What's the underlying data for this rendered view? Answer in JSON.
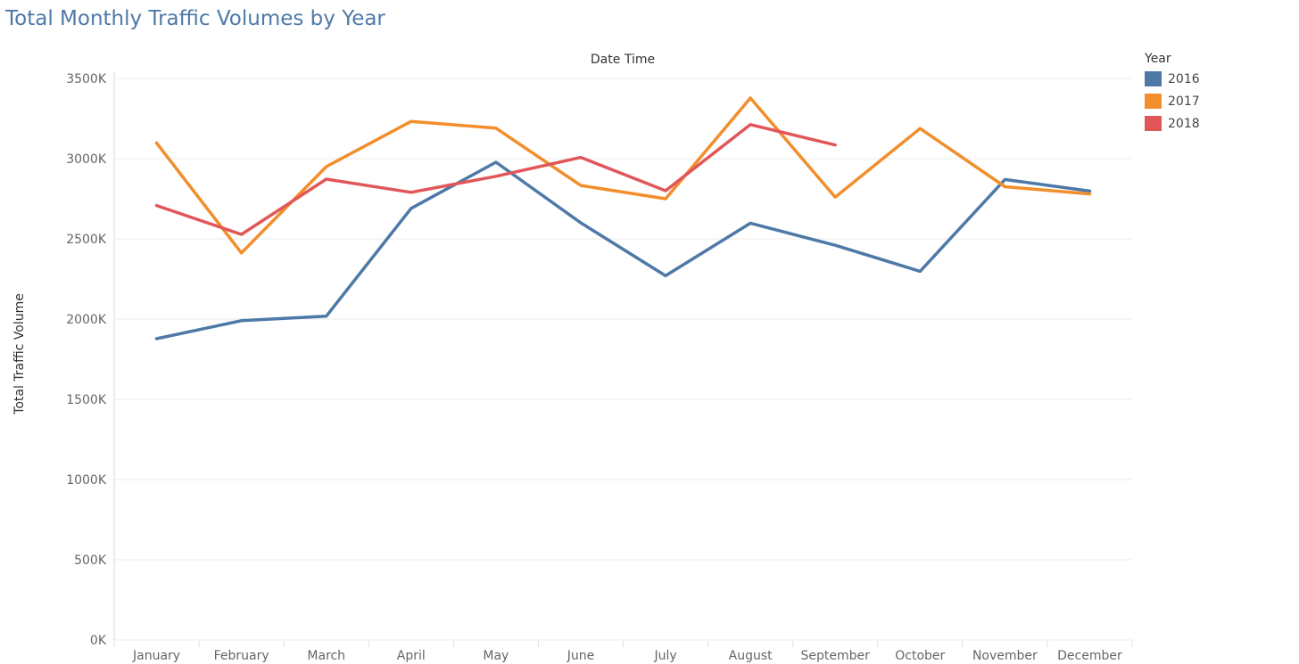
{
  "title": "Total Monthly Traffic Volumes by Year",
  "chart_data": {
    "type": "line",
    "title": "Total Monthly Traffic Volumes by Year",
    "xlabel": "Date Time",
    "ylabel": "Total Traffic Volume",
    "categories": [
      "January",
      "February",
      "March",
      "April",
      "May",
      "June",
      "July",
      "August",
      "September",
      "October",
      "November",
      "December"
    ],
    "ylim": [
      0,
      3500
    ],
    "yticks": [
      0,
      500,
      1000,
      1500,
      2000,
      2500,
      3000,
      3500
    ],
    "ytick_labels": [
      "0K",
      "500K",
      "1000K",
      "1500K",
      "2000K",
      "2500K",
      "3000K",
      "3500K"
    ],
    "grid": true,
    "legend_title": "Year",
    "legend_position": "right",
    "series": [
      {
        "name": "2016",
        "color": "#4e79a7",
        "values": [
          1878,
          1990,
          2018,
          2690,
          2978,
          2600,
          2270,
          2598,
          2460,
          2298,
          2870,
          2798
        ]
      },
      {
        "name": "2017",
        "color": "#f28e2b",
        "values": [
          3098,
          2412,
          2950,
          3232,
          3190,
          2833,
          2750,
          3378,
          2760,
          3188,
          2825,
          2780
        ]
      },
      {
        "name": "2018",
        "color": "#e15759",
        "values": [
          2708,
          2528,
          2872,
          2790,
          2890,
          3008,
          2800,
          3212,
          3085,
          null,
          null,
          null
        ]
      }
    ]
  }
}
